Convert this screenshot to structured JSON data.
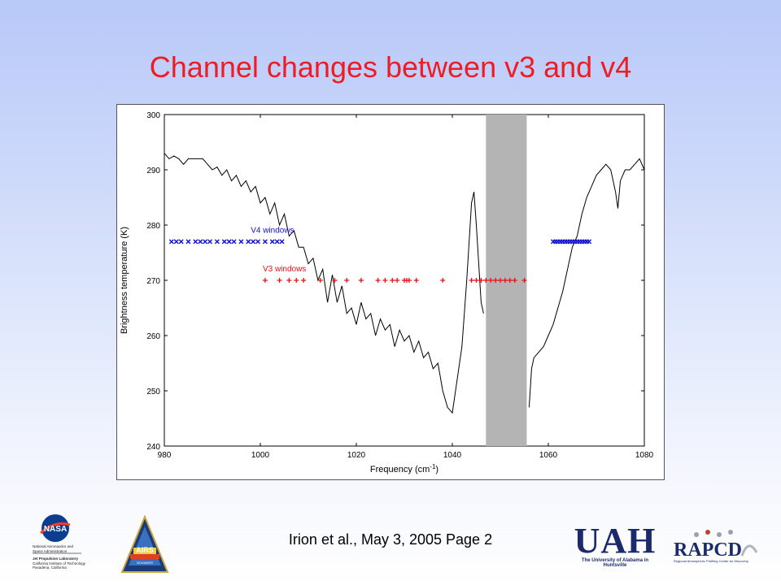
{
  "slide": {
    "title": "Channel changes between v3 and v4",
    "footer": "Irion et al., May 3, 2005   Page 2"
  },
  "logos": {
    "nasa": {
      "icon": "nasa-logo-icon",
      "lines": [
        "National Aeronautics and",
        "Space Administration",
        "Jet Propulsion Laboratory",
        "California Institute of Technology",
        "Pasadena, California"
      ]
    },
    "airs": {
      "icon": "airs-logo-icon",
      "text": "AIRS",
      "sub": "SOUNDER"
    },
    "uah": {
      "icon": "uah-logo-icon",
      "text": "UAH",
      "sub": "The University of Alabama in Huntsville"
    },
    "rapcd": {
      "icon": "rapcd-logo-icon",
      "text": "RAPCD",
      "sub": "Regional Atmospheric Profiling Center for Discovery"
    }
  },
  "chart_data": {
    "type": "line",
    "xlabel": "Frequency (cm",
    "xlabel_sup": "-1",
    "xlabel_end": ")",
    "ylabel": "Brightness temperature (K)",
    "xlim": [
      980,
      1080
    ],
    "ylim": [
      240,
      300
    ],
    "xticks": [
      980,
      1000,
      1020,
      1040,
      1060,
      1080
    ],
    "yticks": [
      240,
      250,
      260,
      270,
      280,
      290,
      300
    ],
    "grid": false,
    "shaded_band": {
      "x0": 1047,
      "x1": 1055.5,
      "color": "#b4b4b4"
    },
    "spectrum_color": "#000000",
    "spectrum_segments": [
      [
        [
          980,
          293
        ],
        [
          981,
          292
        ],
        [
          982,
          292.5
        ],
        [
          983,
          292
        ],
        [
          984,
          291
        ],
        [
          985,
          292
        ],
        [
          986,
          292
        ],
        [
          987,
          292
        ],
        [
          988,
          292
        ],
        [
          989,
          291
        ],
        [
          990,
          290
        ],
        [
          991,
          290.5
        ],
        [
          992,
          289
        ],
        [
          993,
          290
        ],
        [
          994,
          288
        ],
        [
          995,
          289
        ],
        [
          996,
          287
        ],
        [
          997,
          288
        ],
        [
          998,
          286
        ],
        [
          999,
          287
        ],
        [
          1000,
          284
        ],
        [
          1001,
          285
        ],
        [
          1002,
          282
        ],
        [
          1003,
          284
        ],
        [
          1004,
          280
        ],
        [
          1005,
          282
        ],
        [
          1006,
          278
        ],
        [
          1007,
          279
        ],
        [
          1008,
          276
        ],
        [
          1009,
          276
        ],
        [
          1010,
          273
        ],
        [
          1011,
          274
        ],
        [
          1012,
          270
        ],
        [
          1013,
          272
        ],
        [
          1014,
          266
        ],
        [
          1015,
          271
        ],
        [
          1016,
          266
        ],
        [
          1017,
          269
        ],
        [
          1018,
          264
        ],
        [
          1019,
          265
        ],
        [
          1020,
          262
        ],
        [
          1021,
          266
        ],
        [
          1022,
          263
        ],
        [
          1023,
          264
        ],
        [
          1024,
          260
        ],
        [
          1025,
          263
        ],
        [
          1026,
          261
        ],
        [
          1027,
          262
        ],
        [
          1028,
          258
        ],
        [
          1029,
          261
        ],
        [
          1030,
          259
        ],
        [
          1031,
          260
        ],
        [
          1032,
          257
        ],
        [
          1033,
          259
        ],
        [
          1034,
          256
        ],
        [
          1035,
          257
        ],
        [
          1036,
          254
        ],
        [
          1037,
          255
        ],
        [
          1038,
          250
        ],
        [
          1039,
          247
        ],
        [
          1040,
          246
        ],
        [
          1041,
          252
        ],
        [
          1042,
          258
        ],
        [
          1043,
          270
        ],
        [
          1044,
          284
        ],
        [
          1044.5,
          286
        ],
        [
          1045,
          280
        ],
        [
          1046,
          266
        ],
        [
          1046.5,
          264
        ]
      ],
      [
        [
          1056,
          247
        ],
        [
          1056.5,
          254
        ],
        [
          1057,
          256
        ],
        [
          1058,
          257
        ],
        [
          1059,
          258
        ],
        [
          1060,
          260
        ],
        [
          1061,
          262
        ],
        [
          1062,
          265
        ],
        [
          1063,
          268
        ],
        [
          1064,
          272
        ],
        [
          1065,
          276
        ],
        [
          1066,
          278
        ],
        [
          1067,
          282
        ],
        [
          1068,
          285
        ],
        [
          1069,
          287
        ],
        [
          1070,
          289
        ],
        [
          1071,
          290
        ],
        [
          1072,
          291
        ],
        [
          1073,
          290
        ],
        [
          1074,
          286
        ],
        [
          1074.5,
          283
        ],
        [
          1075,
          288
        ],
        [
          1076,
          290
        ],
        [
          1077,
          290
        ],
        [
          1078,
          291
        ],
        [
          1079,
          292
        ],
        [
          1080,
          290
        ]
      ]
    ],
    "series": [
      {
        "name": "V4 windows",
        "marker": "x",
        "color": "#1010d0",
        "y": 277,
        "x": [
          981.5,
          982.5,
          983.5,
          985,
          986.5,
          987.5,
          988.5,
          989.5,
          991,
          992.5,
          993.5,
          994.5,
          996,
          997.5,
          998.5,
          999.5,
          1001,
          1002.5,
          1003.5,
          1004.5,
          1061,
          1061.5,
          1062,
          1062.5,
          1063,
          1063.5,
          1064,
          1064.5,
          1065,
          1065.5,
          1066,
          1066.5,
          1067,
          1067.5,
          1068,
          1068.5
        ]
      },
      {
        "name": "V3 windows",
        "marker": "+",
        "color": "#ee1010",
        "y": 270,
        "x": [
          1001,
          1004,
          1006,
          1007.5,
          1009,
          1012.5,
          1015.5,
          1018,
          1021,
          1024.5,
          1026,
          1027.5,
          1028.5,
          1030,
          1030.5,
          1031,
          1032.5,
          1038,
          1044,
          1045,
          1046,
          1047,
          1048,
          1049,
          1050,
          1051,
          1052,
          1053,
          1055
        ]
      }
    ]
  }
}
